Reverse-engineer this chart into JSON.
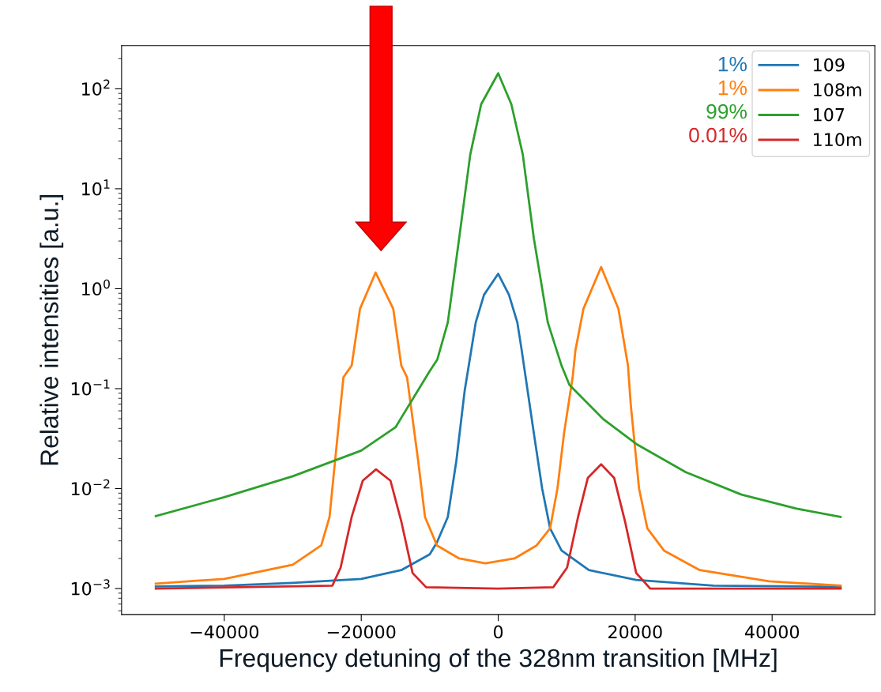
{
  "chart_data": {
    "type": "line",
    "xlabel": "Frequency detuning of the 328nm transition [MHz]",
    "ylabel": "Relative intensities [a.u.]",
    "log": "y",
    "grid": false,
    "legend": "top right",
    "line_style": "solid",
    "marker": "none",
    "xlim": [
      -55000,
      55000
    ],
    "ylim": [
      0.00055,
      270
    ],
    "xticks": [
      {
        "value": -40000,
        "label": "−40000"
      },
      {
        "value": -20000,
        "label": "−20000"
      },
      0,
      20000,
      40000
    ],
    "yticks": [
      {
        "value": 0.001,
        "label": "10$^{−3}$"
      },
      {
        "value": 0.01,
        "label": "10$^{−2}$"
      },
      {
        "value": 0.1,
        "label": "10$^{−1}$"
      },
      {
        "value": 1,
        "label": "10$^{0}$"
      },
      {
        "value": 10,
        "label": "10$^{1}$"
      },
      {
        "value": 100,
        "label": "10$^{2}$"
      }
    ],
    "annotations": [
      "1%",
      "1%",
      "99%",
      "0.01%"
    ],
    "series": [
      {
        "name": "109",
        "color": "#1f77b4",
        "x": [
          -50000,
          -40000,
          -30000,
          -20000,
          -14150,
          -10000,
          -8940,
          -7360,
          -6110,
          -4900,
          -4300,
          -3280,
          -2070,
          0,
          1570,
          2790,
          3400,
          5200,
          6420,
          7580,
          9250,
          13240,
          20150,
          31470,
          50000
        ],
        "values": [
          0.00105,
          0.00107,
          0.00114,
          0.00125,
          0.00153,
          0.0022,
          0.0029,
          0.0052,
          0.019,
          0.095,
          0.17,
          0.46,
          0.87,
          1.41,
          0.87,
          0.46,
          0.25,
          0.036,
          0.01,
          0.004,
          0.0024,
          0.00153,
          0.00122,
          0.00107,
          0.00104
        ]
      },
      {
        "name": "108m",
        "color": "#ff7f0e",
        "x": [
          -50000,
          -40000,
          -30000,
          -25840,
          -24630,
          -23820,
          -22600,
          -21400,
          -20180,
          -17900,
          -15330,
          -14150,
          -13310,
          -11690,
          -10690,
          -8940,
          -5700,
          -1870,
          2380,
          5610,
          7580,
          8650,
          9620,
          10870,
          11270,
          12450,
          15030,
          17550,
          18950,
          19360,
          20570,
          21780,
          24210,
          29430,
          39570,
          50000
        ],
        "values": [
          0.00112,
          0.00125,
          0.00173,
          0.0027,
          0.0052,
          0.019,
          0.13,
          0.17,
          0.63,
          1.45,
          0.63,
          0.17,
          0.13,
          0.019,
          0.0052,
          0.0027,
          0.002,
          0.00179,
          0.002,
          0.0027,
          0.004,
          0.01,
          0.036,
          0.13,
          0.24,
          0.63,
          1.65,
          0.63,
          0.17,
          0.069,
          0.01,
          0.004,
          0.0024,
          0.00153,
          0.00118,
          0.00107
        ]
      },
      {
        "name": "107",
        "color": "#2ca02c",
        "x": [
          -50000,
          -40000,
          -30000,
          -20000,
          -15000,
          -10000,
          -8900,
          -7360,
          -5700,
          -4080,
          -2490,
          0,
          1920,
          3590,
          5200,
          7240,
          9250,
          10400,
          15280,
          20150,
          27400,
          35530,
          43570,
          50000
        ],
        "values": [
          0.0053,
          0.0082,
          0.0133,
          0.024,
          0.041,
          0.15,
          0.195,
          0.46,
          3.2,
          22,
          70,
          143,
          70,
          22,
          3.2,
          0.46,
          0.17,
          0.109,
          0.05,
          0.028,
          0.0146,
          0.0087,
          0.0063,
          0.0052
        ]
      },
      {
        "name": "110m",
        "color": "#d62728",
        "x": [
          -50000,
          -24220,
          -23010,
          -21400,
          -19780,
          -17840,
          -15730,
          -14120,
          -12500,
          -10530,
          0,
          8040,
          10060,
          11660,
          13090,
          15030,
          16930,
          18550,
          20150,
          22190,
          50000
        ],
        "values": [
          0.001,
          0.00107,
          0.00162,
          0.0052,
          0.012,
          0.0156,
          0.012,
          0.0046,
          0.00143,
          0.00103,
          0.001,
          0.00103,
          0.00162,
          0.0052,
          0.0128,
          0.0175,
          0.0128,
          0.0046,
          0.00143,
          0.001,
          0.001
        ]
      }
    ]
  }
}
